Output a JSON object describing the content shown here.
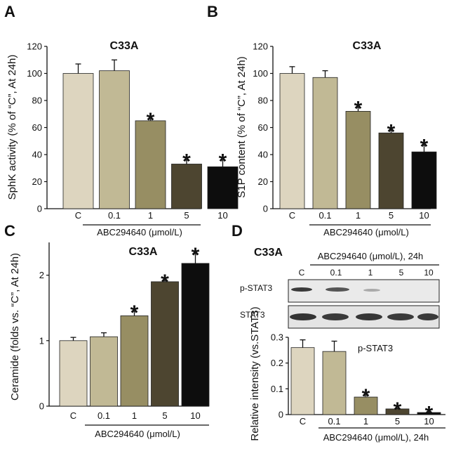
{
  "panels": {
    "A": {
      "letter": "A",
      "title": "C33A"
    },
    "B": {
      "letter": "B",
      "title": "C33A"
    },
    "C": {
      "letter": "C",
      "title": "C33A"
    },
    "D": {
      "letter": "D",
      "title": "C33A",
      "blot_header": "ABC294640 (μmol/L), 24h",
      "lanes": [
        "C",
        "0.1",
        "1",
        "5",
        "10"
      ],
      "blot_rows": [
        "p-STAT3",
        "STAT3"
      ]
    }
  },
  "colors": {
    "bars": [
      "#ddd5bf",
      "#c1b995",
      "#978e63",
      "#4d4530",
      "#0d0d0d"
    ],
    "axis": "#111111"
  },
  "chart_data": [
    {
      "id": "A",
      "type": "bar",
      "title": "C33A",
      "ylabel": "SphK activity (% of “C”, At 24h)",
      "xlabel": "ABC294640 (μmol/L)",
      "categories": [
        "C",
        "0.1",
        "1",
        "5",
        "10"
      ],
      "values": [
        100,
        102,
        65,
        33,
        31
      ],
      "errors": [
        7,
        8,
        1.5,
        3,
        5
      ],
      "significant": [
        false,
        false,
        true,
        true,
        true
      ],
      "ylim": [
        0,
        120
      ],
      "yticks": [
        0,
        20,
        40,
        60,
        80,
        100,
        120
      ],
      "ytick_labels": [
        "0",
        "20",
        "40",
        "60",
        "80",
        "100",
        "120"
      ],
      "star": "*"
    },
    {
      "id": "B",
      "type": "bar",
      "title": "C33A",
      "ylabel": "S1P content (% of “C”, At 24h)",
      "xlabel": "ABC294640 (μmol/L)",
      "categories": [
        "C",
        "0.1",
        "1",
        "5",
        "10"
      ],
      "values": [
        100,
        97,
        72,
        56,
        42
      ],
      "errors": [
        5,
        5,
        3,
        2,
        5
      ],
      "significant": [
        false,
        false,
        true,
        true,
        true
      ],
      "ylim": [
        0,
        120
      ],
      "yticks": [
        0,
        20,
        40,
        60,
        80,
        100,
        120
      ],
      "ytick_labels": [
        "0",
        "20",
        "40",
        "60",
        "80",
        "100",
        "120"
      ],
      "star": "*"
    },
    {
      "id": "C",
      "type": "bar",
      "title": "C33A",
      "ylabel": "Ceramide (folds vs. “C”, At 24h)",
      "xlabel": "ABC294640 (μmol/L)",
      "categories": [
        "C",
        "0.1",
        "1",
        "5",
        "10"
      ],
      "values": [
        1.0,
        1.06,
        1.38,
        1.9,
        2.18
      ],
      "errors": [
        0.05,
        0.06,
        0.07,
        0.02,
        0.15
      ],
      "significant": [
        false,
        false,
        true,
        true,
        true
      ],
      "ylim": [
        0,
        2.5
      ],
      "yticks": [
        0,
        1,
        2
      ],
      "ytick_labels": [
        "0",
        "1",
        "2"
      ],
      "star": "*"
    },
    {
      "id": "D",
      "type": "bar",
      "title": "p-STAT3",
      "ylabel": "Relative intensity (vs.STAT3)",
      "xlabel": "ABC294640 (μmol/L), 24h",
      "categories": [
        "C",
        "0.1",
        "1",
        "5",
        "10"
      ],
      "values": [
        0.26,
        0.245,
        0.068,
        0.022,
        0.008
      ],
      "errors": [
        0.03,
        0.04,
        0.008,
        0.002,
        0.002
      ],
      "significant": [
        false,
        false,
        true,
        true,
        true
      ],
      "ylim": [
        0,
        0.3
      ],
      "yticks": [
        0,
        0.1,
        0.2,
        0.3
      ],
      "ytick_labels": [
        "0",
        "0.1",
        "0.2",
        "0.3"
      ],
      "star": "*"
    }
  ]
}
